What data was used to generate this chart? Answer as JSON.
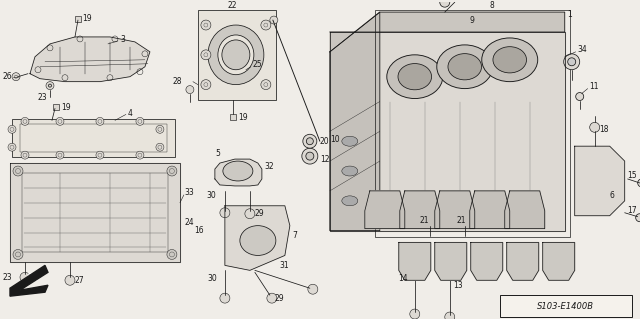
{
  "bg_color": "#f0ede8",
  "line_color": "#1a1a1a",
  "fig_width": 6.4,
  "fig_height": 3.19,
  "dpi": 100,
  "watermark": "S103-E1400B",
  "font_size": 5.5,
  "lw": 0.55
}
